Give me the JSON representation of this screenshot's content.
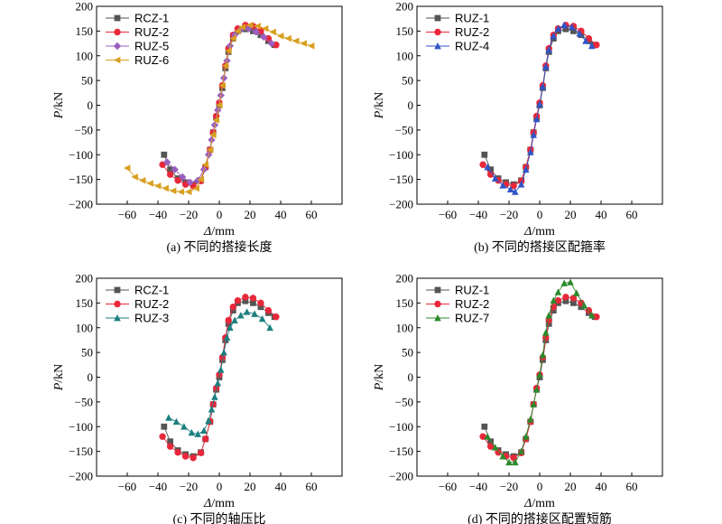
{
  "colors": {
    "RCZ-1": "#555555",
    "RUZ-1": "#555555",
    "RUZ-2": "#e8283a",
    "RUZ-3": "#1d7f7f",
    "RUZ-4": "#2f55c8",
    "RUZ-5": "#9b5fc0",
    "RUZ-6": "#d8a020",
    "RUZ-7": "#2c8a2c"
  },
  "markers": {
    "RCZ-1": "square",
    "RUZ-1": "square",
    "RUZ-2": "circle",
    "RUZ-3": "triangle",
    "RUZ-4": "triangle",
    "RUZ-5": "diamond",
    "RUZ-6": "triangle-left",
    "RUZ-7": "triangle"
  },
  "chart_data": [
    {
      "type": "line",
      "caption": "(a) 不同的搭接长度",
      "xlabel_italic": "Δ",
      "xlabel_unit": "/mm",
      "ylabel_italic": "P",
      "ylabel_unit": "/kN",
      "xlim": [
        -80,
        80
      ],
      "ylim": [
        -200,
        200
      ],
      "xticks": [
        -60,
        -40,
        -20,
        0,
        20,
        40,
        60
      ],
      "yticks": [
        -200,
        -150,
        -100,
        -50,
        0,
        50,
        100,
        150,
        200
      ],
      "legend": "top-left",
      "series": [
        {
          "name": "RCZ-1",
          "x": [
            -36,
            -32,
            -27,
            -22,
            -17,
            -12,
            -9,
            -6,
            -4,
            -2,
            0,
            2,
            4,
            6,
            9,
            12,
            17,
            22,
            27,
            32,
            36
          ],
          "y": [
            -100,
            -130,
            -148,
            -156,
            -160,
            -152,
            -125,
            -90,
            -55,
            -25,
            0,
            35,
            75,
            108,
            135,
            150,
            154,
            150,
            142,
            130,
            122
          ]
        },
        {
          "name": "RUZ-2",
          "x": [
            -37,
            -32,
            -27,
            -22,
            -17,
            -12,
            -9,
            -6,
            -4,
            -2,
            0,
            2,
            4,
            6,
            9,
            12,
            17,
            22,
            27,
            32,
            37
          ],
          "y": [
            -120,
            -140,
            -152,
            -160,
            -163,
            -153,
            -125,
            -90,
            -55,
            -22,
            5,
            40,
            80,
            115,
            142,
            155,
            162,
            160,
            150,
            135,
            122
          ]
        },
        {
          "name": "RUZ-5",
          "x": [
            -34,
            -29,
            -24,
            -19,
            -14,
            -10,
            -7,
            -5,
            -3,
            -1,
            1,
            3,
            5,
            7,
            10,
            14,
            19,
            24,
            29,
            34
          ],
          "y": [
            -115,
            -130,
            -145,
            -156,
            -152,
            -130,
            -100,
            -70,
            -40,
            -10,
            20,
            55,
            90,
            120,
            142,
            153,
            155,
            148,
            138,
            125
          ]
        },
        {
          "name": "RUZ-6",
          "x": [
            -60,
            -55,
            -50,
            -45,
            -40,
            -35,
            -30,
            -25,
            -20,
            -15,
            -12,
            -9,
            -6,
            -4,
            -2,
            0,
            2,
            4,
            6,
            9,
            12,
            15,
            20,
            25,
            30,
            35,
            40,
            45,
            50,
            55,
            60
          ],
          "y": [
            -127,
            -145,
            -152,
            -158,
            -163,
            -168,
            -173,
            -175,
            -175,
            -168,
            -150,
            -120,
            -90,
            -60,
            -30,
            0,
            40,
            80,
            110,
            135,
            150,
            158,
            162,
            160,
            155,
            148,
            140,
            135,
            130,
            125,
            120
          ]
        }
      ]
    },
    {
      "type": "line",
      "caption": "(b) 不同的搭接区配箍率",
      "xlabel_italic": "Δ",
      "xlabel_unit": "/mm",
      "ylabel_italic": "P",
      "ylabel_unit": "/kN",
      "xlim": [
        -80,
        80
      ],
      "ylim": [
        -200,
        200
      ],
      "xticks": [
        -60,
        -40,
        -20,
        0,
        20,
        40,
        60
      ],
      "yticks": [
        -200,
        -150,
        -100,
        -50,
        0,
        50,
        100,
        150,
        200
      ],
      "legend": "top-left",
      "series": [
        {
          "name": "RUZ-1",
          "x": [
            -36,
            -32,
            -27,
            -22,
            -17,
            -12,
            -9,
            -6,
            -4,
            -2,
            0,
            2,
            4,
            6,
            9,
            12,
            17,
            22,
            27,
            32,
            36
          ],
          "y": [
            -100,
            -130,
            -148,
            -156,
            -160,
            -152,
            -125,
            -90,
            -55,
            -25,
            0,
            35,
            75,
            108,
            135,
            150,
            154,
            150,
            142,
            130,
            122
          ]
        },
        {
          "name": "RUZ-2",
          "x": [
            -37,
            -32,
            -27,
            -22,
            -17,
            -12,
            -9,
            -6,
            -4,
            -2,
            0,
            2,
            4,
            6,
            9,
            12,
            17,
            22,
            27,
            32,
            37
          ],
          "y": [
            -120,
            -140,
            -152,
            -160,
            -163,
            -153,
            -125,
            -90,
            -55,
            -22,
            5,
            40,
            80,
            115,
            142,
            155,
            162,
            160,
            150,
            135,
            122
          ]
        },
        {
          "name": "RUZ-4",
          "x": [
            -34,
            -29,
            -24,
            -19,
            -16,
            -12,
            -9,
            -6,
            -4,
            -2,
            0,
            2,
            4,
            6,
            9,
            12,
            16,
            21,
            26,
            30,
            34
          ],
          "y": [
            -125,
            -148,
            -162,
            -170,
            -175,
            -160,
            -130,
            -95,
            -60,
            -28,
            2,
            38,
            78,
            112,
            140,
            155,
            162,
            158,
            145,
            130,
            120
          ]
        }
      ]
    },
    {
      "type": "line",
      "caption": "(c) 不同的轴压比",
      "xlabel_italic": "Δ",
      "xlabel_unit": "/mm",
      "ylabel_italic": "P",
      "ylabel_unit": "/kN",
      "xlim": [
        -80,
        80
      ],
      "ylim": [
        -200,
        200
      ],
      "xticks": [
        -60,
        -40,
        -20,
        0,
        20,
        40,
        60
      ],
      "yticks": [
        -200,
        -150,
        -100,
        -50,
        0,
        50,
        100,
        150,
        200
      ],
      "legend": "top-left",
      "series": [
        {
          "name": "RCZ-1",
          "x": [
            -36,
            -32,
            -27,
            -22,
            -17,
            -12,
            -9,
            -6,
            -4,
            -2,
            0,
            2,
            4,
            6,
            9,
            12,
            17,
            22,
            27,
            32,
            36
          ],
          "y": [
            -100,
            -130,
            -148,
            -156,
            -160,
            -152,
            -125,
            -90,
            -55,
            -25,
            0,
            35,
            75,
            108,
            135,
            150,
            154,
            150,
            142,
            130,
            122
          ]
        },
        {
          "name": "RUZ-2",
          "x": [
            -37,
            -32,
            -27,
            -22,
            -17,
            -12,
            -9,
            -6,
            -4,
            -2,
            0,
            2,
            4,
            6,
            9,
            12,
            17,
            22,
            27,
            32,
            37
          ],
          "y": [
            -120,
            -140,
            -152,
            -160,
            -163,
            -153,
            -125,
            -90,
            -55,
            -22,
            5,
            40,
            80,
            115,
            142,
            155,
            162,
            160,
            150,
            135,
            122
          ]
        },
        {
          "name": "RUZ-3",
          "x": [
            -33,
            -28,
            -23,
            -18,
            -14,
            -10,
            -7,
            -5,
            -3,
            -1,
            1,
            3,
            5,
            7,
            10,
            14,
            18,
            23,
            28,
            33
          ],
          "y": [
            -82,
            -90,
            -100,
            -112,
            -115,
            -108,
            -88,
            -65,
            -40,
            -12,
            15,
            50,
            80,
            100,
            115,
            125,
            132,
            128,
            118,
            100
          ]
        }
      ]
    },
    {
      "type": "line",
      "caption": "(d) 不同的搭接区配置短筋",
      "xlabel_italic": "Δ",
      "xlabel_unit": "/mm",
      "ylabel_italic": "P",
      "ylabel_unit": "/kN",
      "xlim": [
        -80,
        80
      ],
      "ylim": [
        -200,
        200
      ],
      "xticks": [
        -60,
        -40,
        -20,
        0,
        20,
        40,
        60
      ],
      "yticks": [
        -200,
        -150,
        -100,
        -50,
        0,
        50,
        100,
        150,
        200
      ],
      "legend": "top-left",
      "series": [
        {
          "name": "RUZ-1",
          "x": [
            -36,
            -32,
            -27,
            -22,
            -17,
            -12,
            -9,
            -6,
            -4,
            -2,
            0,
            2,
            4,
            6,
            9,
            12,
            17,
            22,
            27,
            32,
            36
          ],
          "y": [
            -100,
            -130,
            -148,
            -156,
            -160,
            -152,
            -125,
            -90,
            -55,
            -25,
            0,
            35,
            75,
            108,
            135,
            150,
            154,
            150,
            142,
            130,
            122
          ]
        },
        {
          "name": "RUZ-2",
          "x": [
            -37,
            -32,
            -27,
            -22,
            -17,
            -12,
            -9,
            -6,
            -4,
            -2,
            0,
            2,
            4,
            6,
            9,
            12,
            17,
            22,
            27,
            32,
            37
          ],
          "y": [
            -120,
            -140,
            -152,
            -160,
            -163,
            -153,
            -125,
            -90,
            -55,
            -22,
            5,
            40,
            80,
            115,
            142,
            155,
            162,
            160,
            150,
            135,
            122
          ]
        },
        {
          "name": "RUZ-7",
          "x": [
            -34,
            -29,
            -24,
            -20,
            -16,
            -12,
            -9,
            -6,
            -4,
            -2,
            0,
            2,
            4,
            6,
            9,
            12,
            16,
            20,
            24,
            29,
            34
          ],
          "y": [
            -120,
            -142,
            -160,
            -172,
            -172,
            -150,
            -120,
            -85,
            -55,
            -25,
            5,
            45,
            90,
            125,
            155,
            172,
            190,
            192,
            170,
            145,
            125
          ]
        }
      ]
    }
  ]
}
